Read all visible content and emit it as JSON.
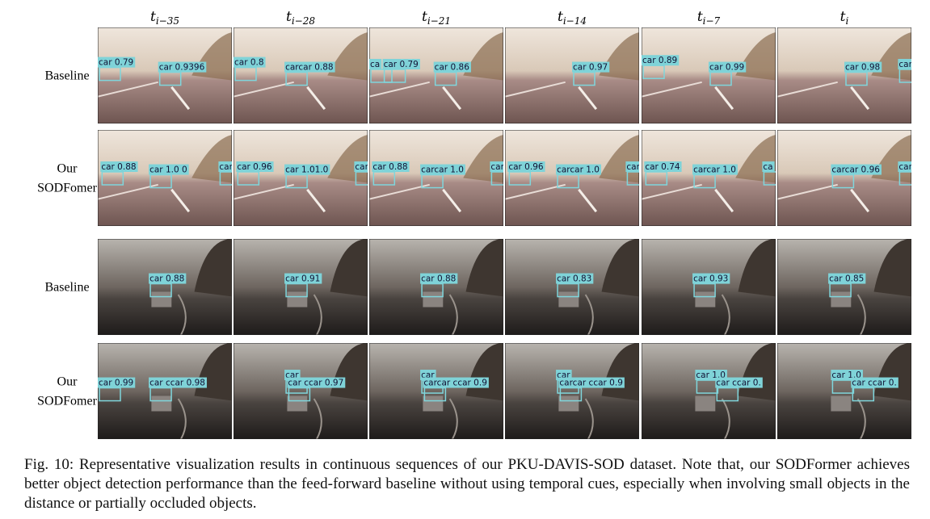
{
  "columns": [
    {
      "base": "t",
      "sub": "i−35"
    },
    {
      "base": "t",
      "sub": "i−28"
    },
    {
      "base": "t",
      "sub": "i−21"
    },
    {
      "base": "t",
      "sub": "i−14"
    },
    {
      "base": "t",
      "sub": "i−7"
    },
    {
      "base": "t",
      "sub": "i"
    }
  ],
  "rows": [
    {
      "label_lines": [
        "Baseline"
      ],
      "scene": "day",
      "cells": [
        {
          "detections": [
            "car 0.79",
            "car 0.9396"
          ]
        },
        {
          "detections": [
            "car 0.8",
            "carcar 0.88"
          ]
        },
        {
          "detections": [
            "ca",
            "car 0.79",
            "car 0.86"
          ]
        },
        {
          "detections": [
            "car 0.97"
          ]
        },
        {
          "detections": [
            "car 0.89",
            "car 0.99"
          ]
        },
        {
          "detections": [
            "car 0.98",
            "car"
          ]
        }
      ]
    },
    {
      "label_lines": [
        "Our",
        "SODFomer"
      ],
      "scene": "day",
      "cells": [
        {
          "detections": [
            "car 0.88",
            "car 1.0 0",
            "car"
          ]
        },
        {
          "detections": [
            "car 0.96",
            "car 1.01.0",
            "car"
          ]
        },
        {
          "detections": [
            "car 0.88",
            "carcar 1.0",
            "car"
          ]
        },
        {
          "detections": [
            "car 0.96",
            "carcar 1.0",
            "car"
          ]
        },
        {
          "detections": [
            "car 0.74",
            "carcar 1.0",
            "ca"
          ]
        },
        {
          "detections": [
            "carcar 0.96",
            "car"
          ]
        }
      ]
    },
    {
      "label_lines": [
        "Baseline"
      ],
      "scene": "night",
      "cells": [
        {
          "detections": [
            "car 0.88"
          ]
        },
        {
          "detections": [
            "car 0.91"
          ]
        },
        {
          "detections": [
            "car 0.88"
          ]
        },
        {
          "detections": [
            "car 0.83"
          ]
        },
        {
          "detections": [
            "car 0.93"
          ]
        },
        {
          "detections": [
            "car 0.85"
          ]
        }
      ]
    },
    {
      "label_lines": [
        "Our",
        "SODFomer"
      ],
      "scene": "night",
      "cells": [
        {
          "detections": [
            "car 0.99",
            "car ccar 0.98"
          ]
        },
        {
          "detections": [
            "car",
            "car ccar 0.97"
          ]
        },
        {
          "detections": [
            "car",
            "carcar ccar 0.9"
          ]
        },
        {
          "detections": [
            "car",
            "carcar ccar 0.9"
          ]
        },
        {
          "detections": [
            "car 1.0",
            "car ccar 0."
          ]
        },
        {
          "detections": [
            "car 1.0",
            "car ccar 0."
          ]
        }
      ]
    }
  ],
  "caption": "Fig. 10: Representative visualization results in continuous sequences of our PKU-DAVIS-SOD dataset. Note that, our SODFormer achieves better object detection performance than the feed-forward baseline without using temporal cues, especially when involving small objects in the distance or partially occluded objects."
}
